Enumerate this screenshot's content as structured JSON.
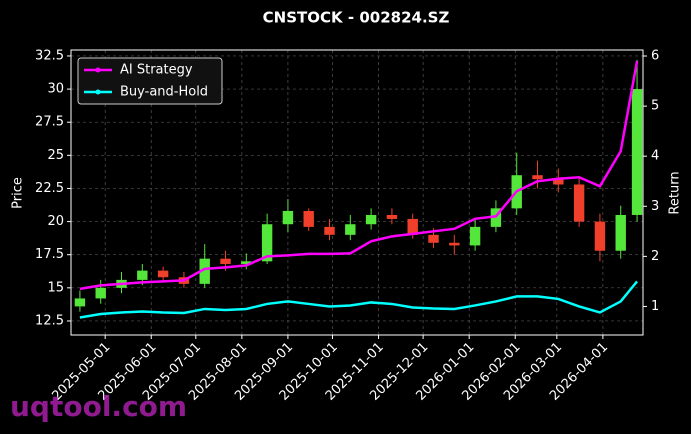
{
  "chart_data": {
    "type": "candlestick",
    "title": "CNSTOCK - 002824.SZ",
    "ylabel": "Price",
    "y2label": "Return",
    "watermark": "uqtool.com",
    "x": [
      "2025-04-14",
      "2025-04-28",
      "2025-05-12",
      "2025-05-26",
      "2025-06-09",
      "2025-06-23",
      "2025-07-07",
      "2025-07-21",
      "2025-08-04",
      "2025-08-18",
      "2025-09-01",
      "2025-09-15",
      "2025-09-29",
      "2025-10-13",
      "2025-10-27",
      "2025-11-10",
      "2025-11-24",
      "2025-12-08",
      "2025-12-22",
      "2026-01-05",
      "2026-01-19",
      "2026-02-02",
      "2026-02-16",
      "2026-03-02",
      "2026-03-16",
      "2026-03-30",
      "2026-04-13",
      "2026-04-24"
    ],
    "open": [
      13.6,
      14.2,
      15.0,
      15.6,
      16.3,
      15.8,
      15.3,
      17.2,
      16.8,
      17.0,
      19.8,
      20.8,
      19.6,
      19.0,
      19.8,
      20.5,
      20.2,
      19.0,
      18.4,
      18.2,
      19.6,
      21.0,
      23.5,
      23.2,
      22.8,
      20.0,
      17.8,
      20.5
    ],
    "high": [
      14.8,
      15.6,
      16.2,
      16.8,
      16.6,
      16.2,
      18.3,
      17.8,
      17.6,
      20.6,
      21.7,
      21.0,
      20.2,
      20.5,
      21.0,
      21.0,
      20.6,
      19.5,
      19.0,
      20.2,
      21.6,
      25.2,
      24.6,
      24.0,
      23.3,
      20.6,
      21.2,
      32.2
    ],
    "low": [
      13.2,
      13.8,
      14.6,
      15.2,
      15.4,
      15.0,
      15.0,
      16.3,
      16.4,
      16.8,
      19.2,
      19.3,
      18.6,
      18.6,
      19.4,
      19.8,
      18.7,
      18.0,
      17.5,
      17.8,
      19.2,
      20.5,
      22.5,
      22.2,
      19.6,
      17.0,
      17.2,
      20.0
    ],
    "close": [
      14.2,
      15.0,
      15.6,
      16.3,
      15.8,
      15.3,
      17.2,
      16.8,
      17.0,
      19.8,
      20.8,
      19.6,
      19.0,
      19.8,
      20.5,
      20.2,
      19.0,
      18.4,
      18.2,
      19.6,
      21.0,
      23.5,
      23.2,
      22.8,
      20.0,
      17.8,
      20.5,
      30.0
    ],
    "up_color": "#55e63c",
    "down_color": "#f0402c",
    "series": [
      {
        "name": "AI Strategy",
        "color": "#ff00ff",
        "axis": "y2",
        "values": [
          1.35,
          1.42,
          1.45,
          1.48,
          1.5,
          1.52,
          1.75,
          1.78,
          1.82,
          2.0,
          2.02,
          2.05,
          2.05,
          2.06,
          2.3,
          2.4,
          2.45,
          2.5,
          2.55,
          2.75,
          2.8,
          3.3,
          3.5,
          3.55,
          3.58,
          3.4,
          4.1,
          5.9
        ]
      },
      {
        "name": "Buy-and-Hold",
        "color": "#00ffff",
        "axis": "y2",
        "values": [
          0.78,
          0.85,
          0.88,
          0.9,
          0.88,
          0.87,
          0.95,
          0.93,
          0.95,
          1.05,
          1.1,
          1.05,
          1.0,
          1.02,
          1.08,
          1.05,
          0.98,
          0.96,
          0.95,
          1.02,
          1.1,
          1.2,
          1.2,
          1.15,
          1.0,
          0.88,
          1.1,
          1.5
        ]
      }
    ],
    "xlim": [
      "2025-04-08",
      "2026-04-28"
    ],
    "xticks": [
      "2025-05-01",
      "2025-06-01",
      "2025-07-01",
      "2025-08-01",
      "2025-09-01",
      "2025-10-01",
      "2025-11-01",
      "2025-12-01",
      "2026-01-01",
      "2026-02-01",
      "2026-03-01",
      "2026-04-01"
    ],
    "ylim": [
      11.44,
      32.95
    ],
    "yticks": [
      12.5,
      15.0,
      17.5,
      20.0,
      22.5,
      25.0,
      27.5,
      30.0,
      32.5
    ],
    "y2lim": [
      0.43,
      6.12
    ],
    "y2ticks": [
      1,
      2,
      3,
      4,
      5,
      6
    ],
    "grid": true,
    "legend": "upper left"
  }
}
